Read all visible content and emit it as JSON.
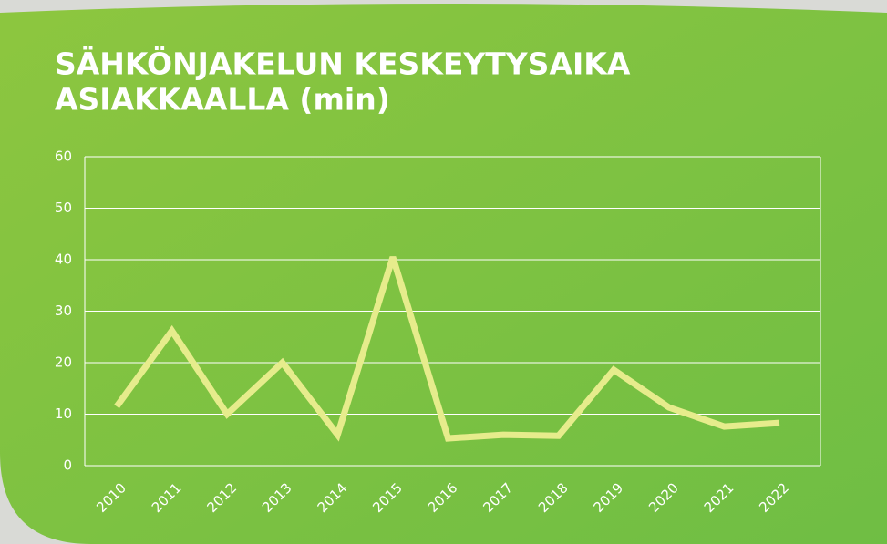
{
  "chart_data": {
    "type": "line",
    "title_lines": [
      "SÄHKÖNJAKELUN KESKEYTYSAIKA",
      "ASIAKKAALLA (min)"
    ],
    "categories": [
      "2010",
      "2011",
      "2012",
      "2013",
      "2014",
      "2015",
      "2016",
      "2017",
      "2018",
      "2019",
      "2020",
      "2021",
      "2022"
    ],
    "values": [
      11.5,
      26.2,
      10,
      20,
      6,
      40.5,
      5.3,
      6,
      5.8,
      18.6,
      11.3,
      7.6,
      8.3
    ],
    "color": "#e6ec8c",
    "ylim": [
      0,
      60
    ],
    "yticks": [
      0,
      10,
      20,
      30,
      40,
      50,
      60
    ],
    "grid": true
  }
}
